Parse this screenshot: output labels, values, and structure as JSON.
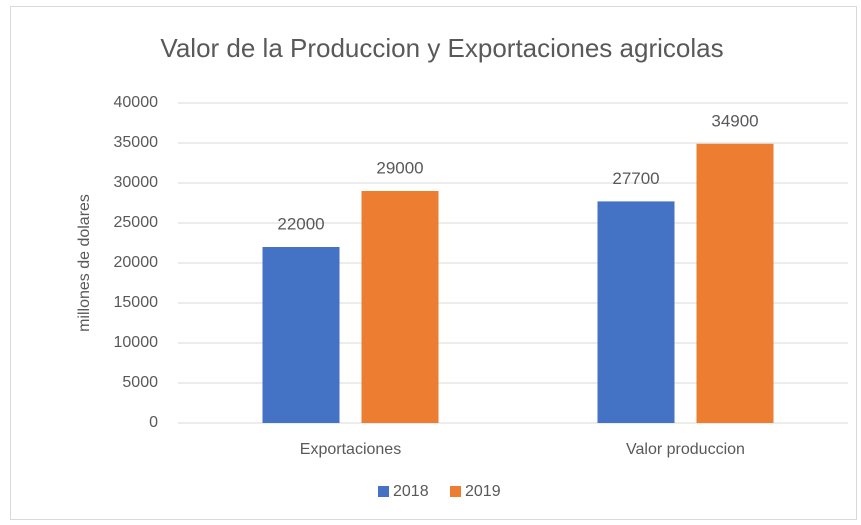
{
  "chart_data": {
    "type": "bar",
    "title": "Valor de la Produccion y Exportaciones agricolas",
    "y_label": "millones de dolares",
    "categories": [
      "Exportaciones",
      "Valor produccion"
    ],
    "series": [
      {
        "name": "2018",
        "color": "#4472c4",
        "values": [
          22000,
          27700
        ]
      },
      {
        "name": "2019",
        "color": "#ed7d31",
        "values": [
          29000,
          34900
        ]
      }
    ],
    "ylim": [
      0,
      40000
    ],
    "yticks": [
      0,
      5000,
      10000,
      15000,
      20000,
      25000,
      30000,
      35000,
      40000
    ],
    "grid": true,
    "legend": "bottom"
  }
}
